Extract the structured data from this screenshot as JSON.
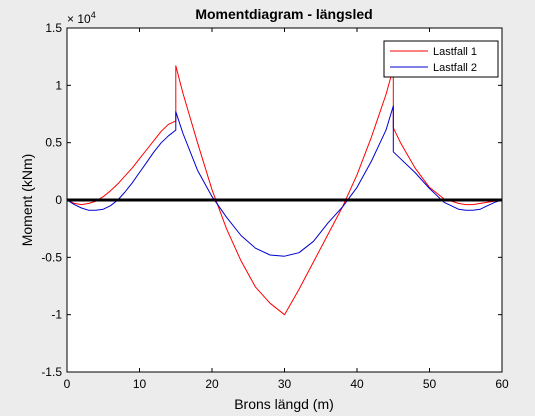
{
  "window": {
    "background": "#ececec"
  },
  "chart_data": {
    "type": "line",
    "title": "Momentdiagram - längsled",
    "xlabel": "Brons längd (m)",
    "ylabel": "Moment (kNm)",
    "xlim": [
      0,
      60
    ],
    "ylim": [
      -1.5,
      1.5
    ],
    "y_scale_note": "×10^4",
    "y_scale_exponent": "4",
    "y_scale_base": "× 10",
    "xticks": [
      0,
      10,
      20,
      30,
      40,
      50,
      60
    ],
    "xtick_labels": [
      "0",
      "10",
      "20",
      "30",
      "40",
      "50",
      "60"
    ],
    "yticks": [
      -1.5,
      -1,
      -0.5,
      0,
      0.5,
      1,
      1.5
    ],
    "ytick_labels": [
      "-1.5",
      "-1",
      "-0.5",
      "0",
      "0.5",
      "1",
      "1.5"
    ],
    "grid": false,
    "legend_position": "top-right",
    "series": [
      {
        "name": "Lastfall 1",
        "color": "#ff0000",
        "x": [
          0,
          1,
          2,
          3,
          4,
          5,
          6,
          7,
          8,
          9,
          10,
          11,
          12,
          13,
          14,
          15,
          15,
          16,
          18,
          20,
          22,
          24,
          26,
          28,
          30,
          32,
          34,
          36,
          38,
          40,
          42,
          44,
          45,
          45,
          46,
          48,
          50,
          52,
          54,
          55,
          56,
          57,
          58,
          59,
          60
        ],
        "y": [
          0,
          -0.03,
          -0.04,
          -0.03,
          -0.01,
          0.03,
          0.08,
          0.14,
          0.21,
          0.28,
          0.36,
          0.44,
          0.52,
          0.6,
          0.66,
          0.69,
          1.17,
          0.93,
          0.5,
          0.09,
          -0.25,
          -0.53,
          -0.76,
          -0.9,
          -1.0,
          -0.78,
          -0.54,
          -0.3,
          -0.06,
          0.22,
          0.55,
          0.92,
          1.15,
          0.63,
          0.5,
          0.28,
          0.11,
          0.01,
          -0.03,
          -0.04,
          -0.04,
          -0.03,
          -0.02,
          -0.01,
          0
        ]
      },
      {
        "name": "Lastfall 2",
        "color": "#0000cc",
        "x": [
          0,
          1,
          2,
          3,
          4,
          5,
          6,
          7,
          8,
          9,
          10,
          11,
          12,
          13,
          14,
          15,
          15,
          16,
          18,
          20,
          22,
          24,
          26,
          28,
          30,
          32,
          34,
          36,
          38,
          40,
          42,
          44,
          45,
          45,
          46,
          48,
          50,
          52,
          54,
          55,
          56,
          57,
          58,
          59,
          60
        ],
        "y": [
          0,
          -0.04,
          -0.07,
          -0.09,
          -0.09,
          -0.08,
          -0.05,
          0.0,
          0.07,
          0.15,
          0.24,
          0.33,
          0.42,
          0.5,
          0.56,
          0.61,
          0.77,
          0.58,
          0.26,
          0.03,
          -0.15,
          -0.31,
          -0.42,
          -0.48,
          -0.49,
          -0.46,
          -0.36,
          -0.2,
          -0.06,
          0.11,
          0.34,
          0.61,
          0.82,
          0.42,
          0.36,
          0.24,
          0.1,
          -0.02,
          -0.08,
          -0.09,
          -0.09,
          -0.08,
          -0.05,
          -0.02,
          0
        ]
      },
      {
        "name": "",
        "color": "#000000",
        "x": [
          0,
          60
        ],
        "y": [
          0,
          0
        ]
      }
    ]
  }
}
